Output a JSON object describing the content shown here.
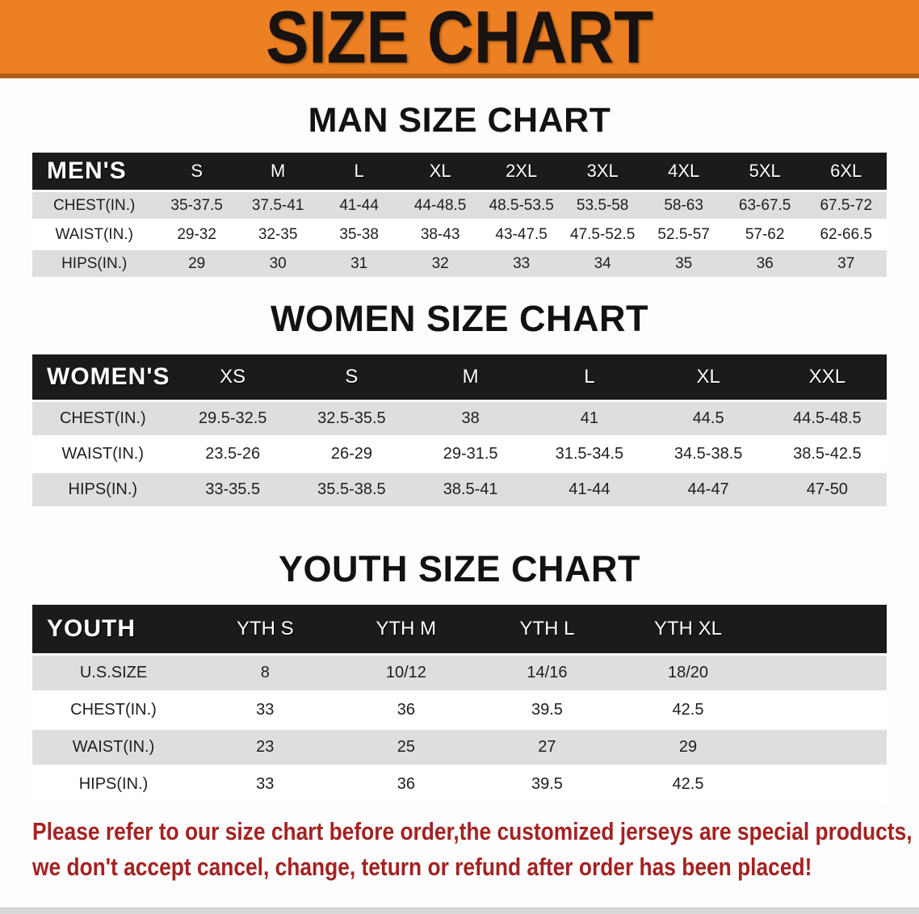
{
  "banner": {
    "title": "SIZE CHART"
  },
  "sections": {
    "men": {
      "title": "MAN SIZE CHART",
      "table": {
        "header": [
          "MEN'S",
          "S",
          "M",
          "L",
          "XL",
          "2XL",
          "3XL",
          "4XL",
          "5XL",
          "6XL"
        ],
        "rows": [
          [
            "CHEST(IN.)",
            "35-37.5",
            "37.5-41",
            "41-44",
            "44-48.5",
            "48.5-53.5",
            "53.5-58",
            "58-63",
            "63-67.5",
            "67.5-72"
          ],
          [
            "WAIST(IN.)",
            "29-32",
            "32-35",
            "35-38",
            "38-43",
            "43-47.5",
            "47.5-52.5",
            "52.5-57",
            "57-62",
            "62-66.5"
          ],
          [
            "HIPS(IN.)",
            "29",
            "30",
            "31",
            "32",
            "33",
            "34",
            "35",
            "36",
            "37"
          ]
        ]
      }
    },
    "women": {
      "title": "WOMEN SIZE CHART",
      "table": {
        "header": [
          "WOMEN'S",
          "XS",
          "S",
          "M",
          "L",
          "XL",
          "XXL"
        ],
        "rows": [
          [
            "CHEST(IN.)",
            "29.5-32.5",
            "32.5-35.5",
            "38",
            "41",
            "44.5",
            "44.5-48.5"
          ],
          [
            "WAIST(IN.)",
            "23.5-26",
            "26-29",
            "29-31.5",
            "31.5-34.5",
            "34.5-38.5",
            "38.5-42.5"
          ],
          [
            "HIPS(IN.)",
            "33-35.5",
            "35.5-38.5",
            "38.5-41",
            "41-44",
            "44-47",
            "47-50"
          ]
        ]
      }
    },
    "youth": {
      "title": "YOUTH SIZE CHART",
      "table": {
        "header": [
          "YOUTH",
          "YTH S",
          "YTH M",
          "YTH L",
          "YTH XL",
          ""
        ],
        "rows": [
          [
            "U.S.SIZE",
            "8",
            "10/12",
            "14/16",
            "18/20",
            ""
          ],
          [
            "CHEST(IN.)",
            "33",
            "36",
            "39.5",
            "42.5",
            ""
          ],
          [
            "WAIST(IN.)",
            "23",
            "25",
            "27",
            "29",
            ""
          ],
          [
            "HIPS(IN.)",
            "33",
            "36",
            "39.5",
            "42.5",
            ""
          ]
        ]
      }
    }
  },
  "disclaimer": {
    "line1": "Please refer to our size chart before order,the customized jerseys are special products,",
    "line2": "we don't accept cancel, change, teturn or refund after order has been placed!"
  },
  "colors": {
    "banner_bg": "#EC8023",
    "banner_edge": "#B35F17",
    "header_bar": "#1B1B1B",
    "row_gray": "#DEDEDE",
    "row_white": "#FFFFFF",
    "disclaimer_red": "#A42222",
    "bottom_strip": "#D9D9D9"
  }
}
